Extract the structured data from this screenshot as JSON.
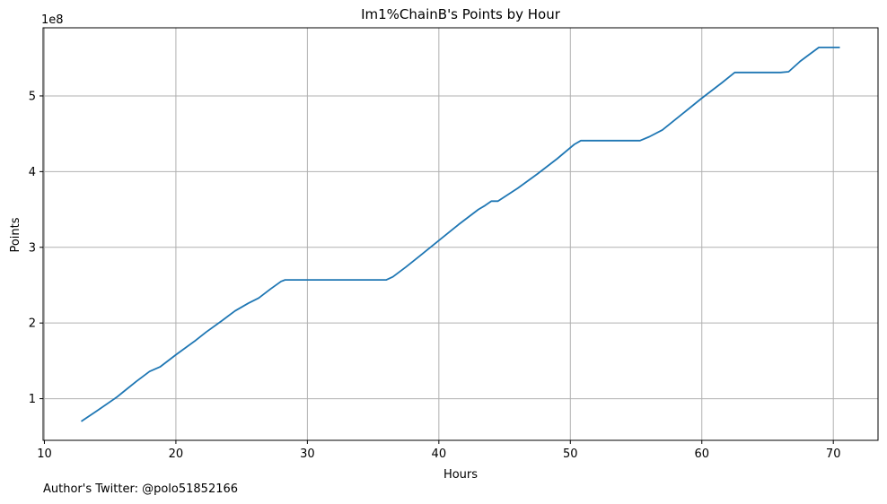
{
  "chart_data": {
    "type": "line",
    "title": "Im1%ChainB's Points by Hour",
    "xlabel": "Hours",
    "ylabel": "Points",
    "y_multiplier_label": "1e8",
    "xlim": [
      9.9,
      73.4
    ],
    "ylim": [
      0.45,
      5.9
    ],
    "x_ticks": [
      10,
      20,
      30,
      40,
      50,
      60,
      70
    ],
    "x_tick_labels": [
      "10",
      "20",
      "30",
      "40",
      "50",
      "60",
      "70"
    ],
    "y_ticks": [
      1,
      2,
      3,
      4,
      5
    ],
    "y_tick_labels": [
      "1",
      "2",
      "3",
      "4",
      "5"
    ],
    "grid": true,
    "series": [
      {
        "color": "#1f77b4",
        "x": [
          12.8,
          14.0,
          15.5,
          16.0,
          17.0,
          18.0,
          18.8,
          20.0,
          21.5,
          22.3,
          23.5,
          24.5,
          25.5,
          26.3,
          27.2,
          28.0,
          28.3,
          30.0,
          32.0,
          34.0,
          36.0,
          36.5,
          37.5,
          38.5,
          40.0,
          41.5,
          43.0,
          43.5,
          44.0,
          44.5,
          46.0,
          47.5,
          49.0,
          50.3,
          50.8,
          52.0,
          54.0,
          55.3,
          56.0,
          57.0,
          58.5,
          60.0,
          61.5,
          62.5,
          64.0,
          66.0,
          66.6,
          67.5,
          68.2,
          68.9,
          70.5
        ],
        "y": [
          0.7,
          0.84,
          1.02,
          1.09,
          1.23,
          1.36,
          1.42,
          1.58,
          1.77,
          1.88,
          2.03,
          2.16,
          2.26,
          2.33,
          2.45,
          2.55,
          2.57,
          2.57,
          2.57,
          2.57,
          2.57,
          2.61,
          2.74,
          2.88,
          3.09,
          3.3,
          3.5,
          3.55,
          3.61,
          3.61,
          3.78,
          3.97,
          4.17,
          4.36,
          4.41,
          4.41,
          4.41,
          4.41,
          4.46,
          4.55,
          4.76,
          4.97,
          5.17,
          5.31,
          5.31,
          5.31,
          5.32,
          5.46,
          5.55,
          5.64,
          5.64
        ]
      }
    ]
  },
  "footnote": "Author's Twitter: @polo51852166"
}
